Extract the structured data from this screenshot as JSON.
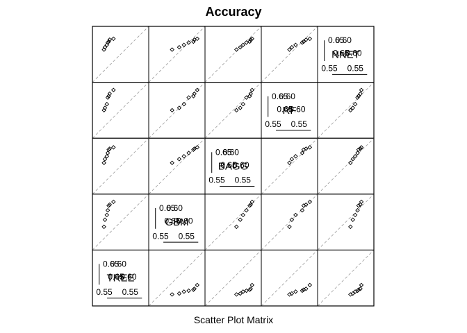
{
  "chart_data": {
    "type": "scatter",
    "title": "Accuracy",
    "xlabel": "Scatter Plot Matrix",
    "ylabel": "",
    "variables": [
      "TREE",
      "GBM",
      "BAGG",
      "RF",
      "NNET"
    ],
    "axis_range": [
      0.52,
      0.63
    ],
    "diagonal_ticks": {
      "lower": "0.55",
      "upper_a": "0.60",
      "upper_b": "0.65"
    },
    "values": {
      "TREE": [
        0.54,
        0.542,
        0.546,
        0.548,
        0.55,
        0.552,
        0.56
      ],
      "GBM": [
        0.565,
        0.58,
        0.59,
        0.6,
        0.61,
        0.612,
        0.618
      ],
      "BAGG": [
        0.582,
        0.59,
        0.596,
        0.603,
        0.61,
        0.612,
        0.615
      ],
      "RF": [
        0.575,
        0.58,
        0.588,
        0.602,
        0.605,
        0.61,
        0.618
      ],
      "NNET": [
        0.585,
        0.59,
        0.595,
        0.6,
        0.602,
        0.606,
        0.608
      ]
    },
    "grid": false,
    "legend": "none"
  }
}
